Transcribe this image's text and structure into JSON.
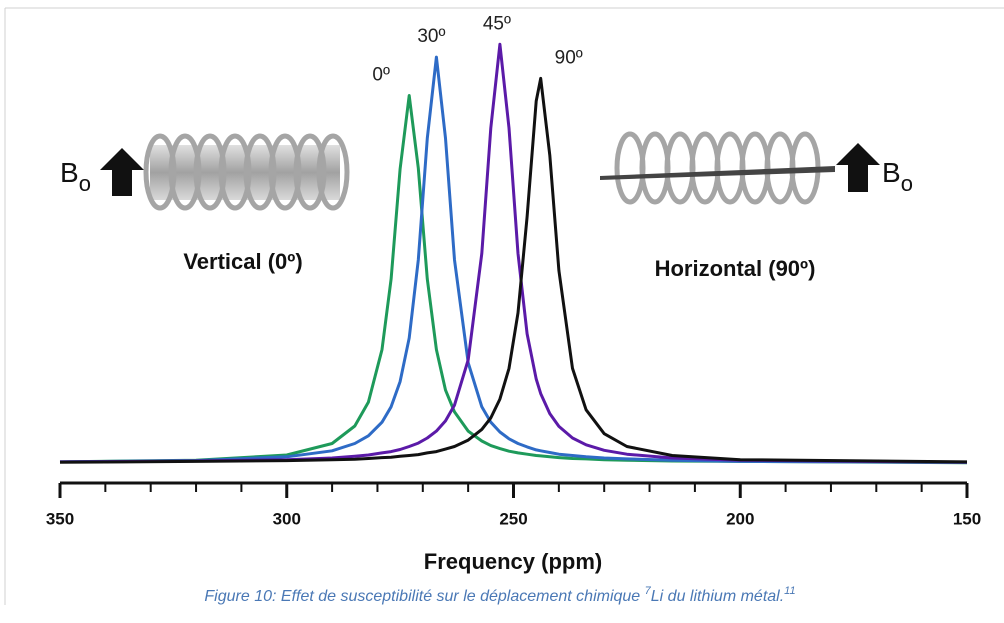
{
  "chart_data": {
    "type": "line",
    "x_label": "Frequency (ppm)",
    "field_label": {
      "main": "B",
      "sub": "o"
    },
    "annotations": [
      "Vertical (0º)",
      "Horizontal (90º)"
    ],
    "x": [
      350,
      320,
      300,
      290,
      285,
      282,
      279,
      277,
      275,
      273,
      271,
      269,
      267,
      265,
      263,
      260,
      257,
      255,
      253,
      251,
      249,
      247,
      245,
      244,
      242,
      240,
      237,
      234,
      230,
      225,
      215,
      200,
      150
    ],
    "series": [
      {
        "name": "0º",
        "color": "#1e9a5a",
        "values": [
          0.012,
          0.016,
          0.028,
          0.055,
          0.096,
          0.152,
          0.275,
          0.44,
          0.698,
          0.87,
          0.7,
          0.44,
          0.275,
          0.18,
          0.129,
          0.084,
          0.061,
          0.05,
          0.043,
          0.037,
          0.033,
          0.03,
          0.027,
          0.026,
          0.024,
          0.022,
          0.02,
          0.019,
          0.017,
          0.016,
          0.014,
          0.013,
          0.01
        ]
      },
      {
        "name": "30º",
        "color": "#2e6bc6",
        "values": [
          0.012,
          0.015,
          0.024,
          0.038,
          0.055,
          0.073,
          0.105,
          0.141,
          0.2,
          0.302,
          0.485,
          0.77,
          0.96,
          0.77,
          0.485,
          0.244,
          0.141,
          0.105,
          0.082,
          0.066,
          0.055,
          0.047,
          0.04,
          0.038,
          0.034,
          0.03,
          0.027,
          0.024,
          0.021,
          0.019,
          0.016,
          0.013,
          0.011
        ]
      },
      {
        "name": "45º",
        "color": "#5b1aa8",
        "values": [
          0.012,
          0.014,
          0.017,
          0.021,
          0.025,
          0.028,
          0.033,
          0.036,
          0.041,
          0.048,
          0.056,
          0.068,
          0.084,
          0.108,
          0.145,
          0.251,
          0.5,
          0.794,
          0.99,
          0.794,
          0.5,
          0.312,
          0.206,
          0.172,
          0.125,
          0.095,
          0.068,
          0.052,
          0.039,
          0.03,
          0.021,
          0.016,
          0.011
        ]
      },
      {
        "name": "90º",
        "color": "#111111",
        "values": [
          0.011,
          0.013,
          0.015,
          0.017,
          0.018,
          0.02,
          0.022,
          0.023,
          0.025,
          0.027,
          0.029,
          0.033,
          0.036,
          0.042,
          0.048,
          0.063,
          0.088,
          0.115,
          0.159,
          0.231,
          0.361,
          0.586,
          0.857,
          0.91,
          0.73,
          0.46,
          0.231,
          0.134,
          0.078,
          0.048,
          0.027,
          0.017,
          0.012
        ]
      }
    ],
    "xlim": [
      350,
      150
    ],
    "ylim": [
      0,
      1
    ],
    "xticks": [
      350,
      300,
      250,
      200,
      150
    ],
    "xminorticks": [
      340,
      330,
      320,
      310,
      290,
      280,
      270,
      260,
      240,
      230,
      220,
      210,
      190,
      180,
      170,
      160
    ]
  },
  "caption": {
    "prefix": "Figure 10: Effet de susceptibilité sur le déplacement chimique ",
    "sup1": "7",
    "middle": "Li du lithium métal.",
    "sup2": "11"
  }
}
